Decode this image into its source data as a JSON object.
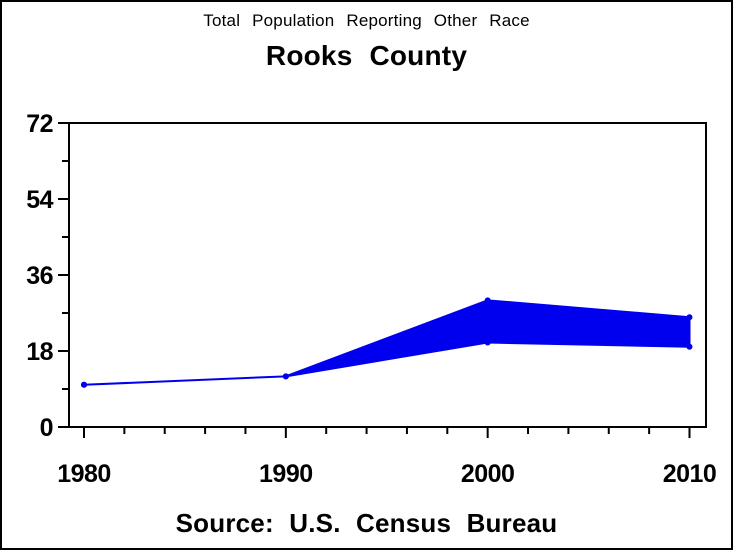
{
  "header": {
    "title": "Total Population Reporting Other Race",
    "subtitle": "Rooks County"
  },
  "footer": {
    "source": "Source: U.S. Census Bureau"
  },
  "colors": {
    "band": "#0000ee",
    "axis": "#000000",
    "background": "#ffffff",
    "text": "#000000"
  },
  "chart_data": {
    "type": "area",
    "title": "Total Population Reporting Other Race",
    "subtitle": "Rooks County",
    "source": "Source: U.S. Census Bureau",
    "x": [
      1980,
      1990,
      2000,
      2010
    ],
    "x_tick_labels": [
      "1980",
      "1990",
      "2000",
      "2010"
    ],
    "x_minor_ticks": [
      1982,
      1984,
      1986,
      1988,
      1992,
      1994,
      1996,
      1998,
      2002,
      2004,
      2006,
      2008
    ],
    "xlim": [
      1979.3,
      2010.8
    ],
    "y_ticks": [
      0,
      18,
      36,
      54,
      72
    ],
    "y_tick_labels": [
      "0",
      "18",
      "36",
      "54",
      "72"
    ],
    "y_minor_ticks": [
      9,
      27,
      45,
      63
    ],
    "ylim": [
      0,
      72
    ],
    "grid": false,
    "legend": "none",
    "series": [
      {
        "name": "band_upper",
        "values": [
          10,
          12,
          30,
          26
        ]
      },
      {
        "name": "band_lower",
        "values": [
          10,
          12,
          20,
          19
        ]
      }
    ]
  }
}
